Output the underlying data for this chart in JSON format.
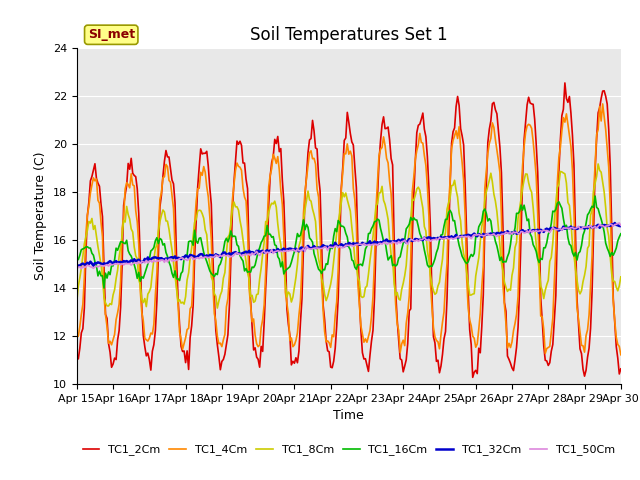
{
  "title": "Soil Temperatures Set 1",
  "xlabel": "Time",
  "ylabel": "Soil Temperature (C)",
  "ylim": [
    10,
    24
  ],
  "annotation": "SI_met",
  "background_color": "#e8e8e8",
  "series_names": [
    "TC1_2Cm",
    "TC1_4Cm",
    "TC1_8Cm",
    "TC1_16Cm",
    "TC1_32Cm",
    "TC1_50Cm"
  ],
  "series_colors": [
    "#dd0000",
    "#ff8800",
    "#cccc00",
    "#00bb00",
    "#0000cc",
    "#dd88dd"
  ],
  "series_linewidths": [
    1.2,
    1.2,
    1.2,
    1.2,
    1.8,
    1.2
  ],
  "xtick_labels": [
    "Apr 15",
    "Apr 16",
    "Apr 17",
    "Apr 18",
    "Apr 19",
    "Apr 20",
    "Apr 21",
    "Apr 22",
    "Apr 23",
    "Apr 24",
    "Apr 25",
    "Apr 26",
    "Apr 27",
    "Apr 28",
    "Apr 29",
    "Apr 30"
  ],
  "ytick_values": [
    10,
    12,
    14,
    16,
    18,
    20,
    22,
    24
  ],
  "title_fontsize": 12,
  "axis_fontsize": 9,
  "tick_fontsize": 8,
  "legend_fontsize": 8
}
